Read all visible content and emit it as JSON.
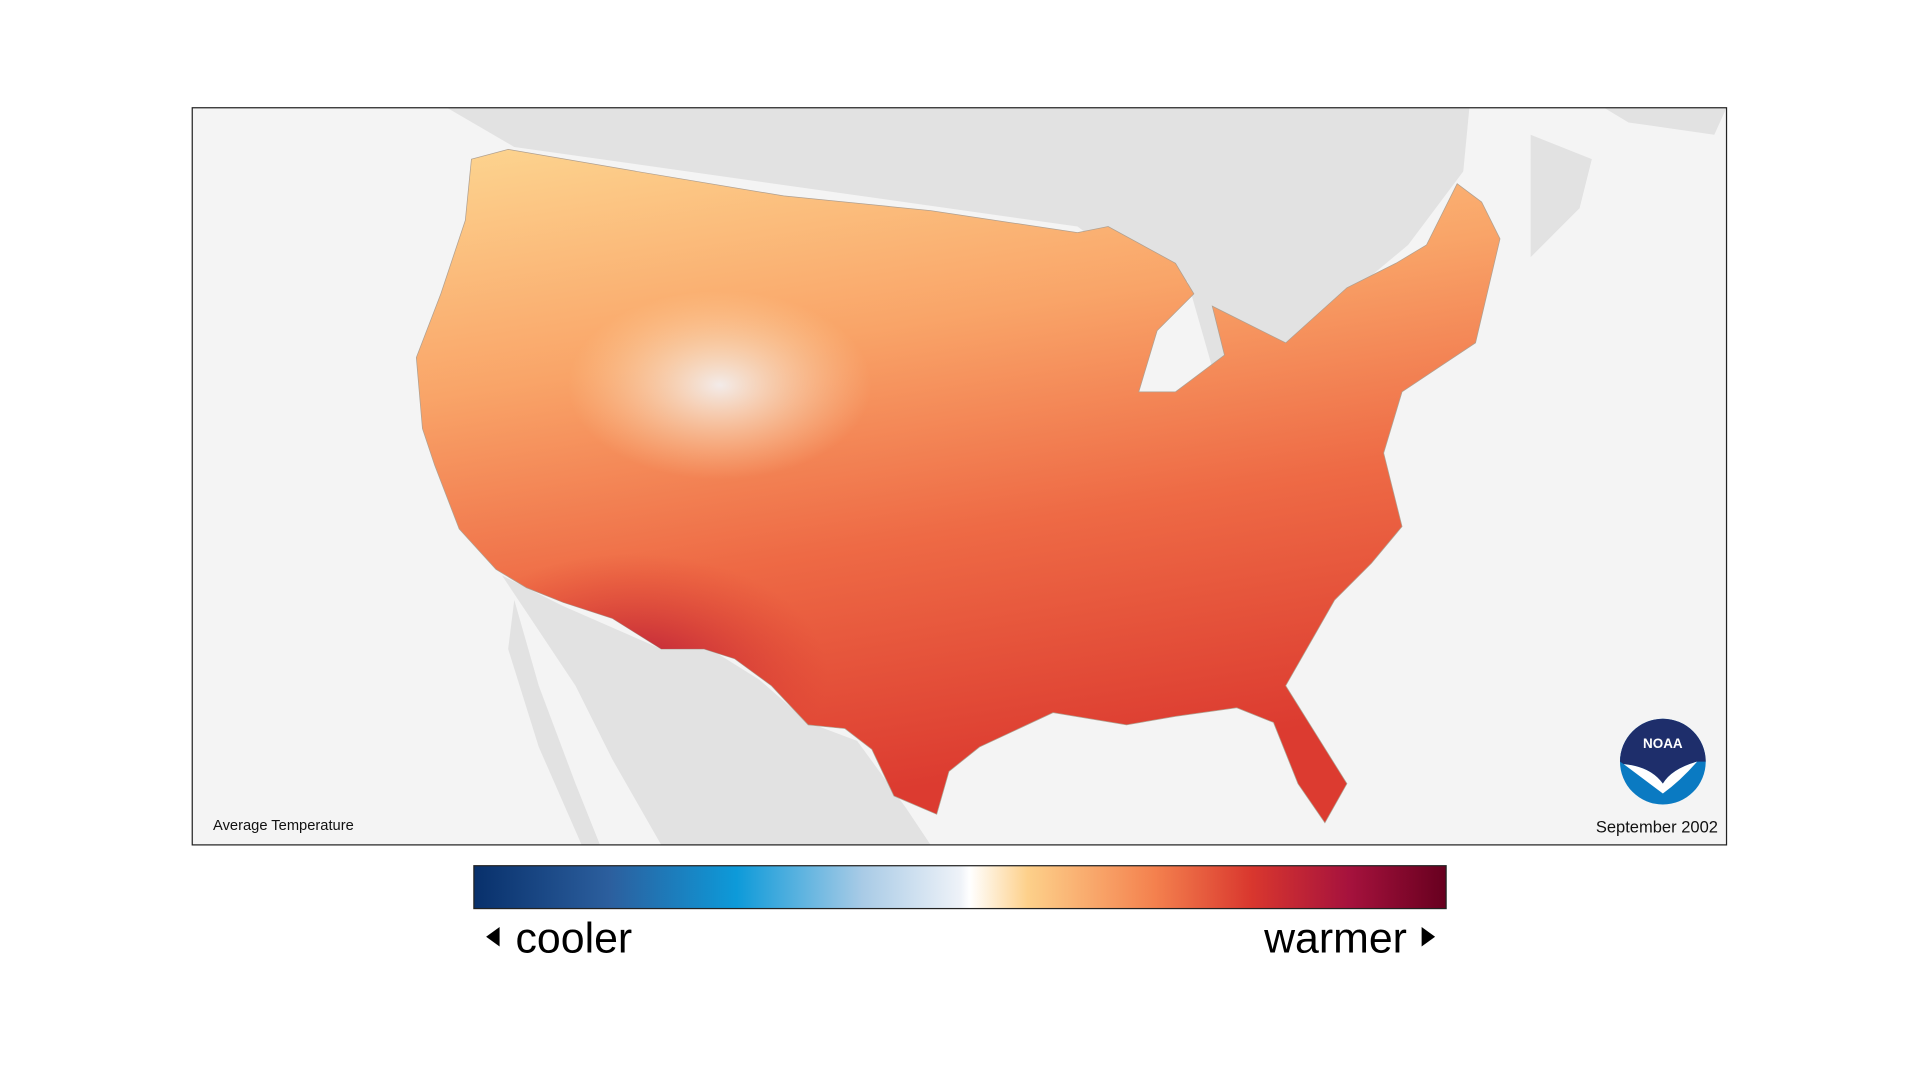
{
  "map": {
    "title": "Average Temperature",
    "date": "September 2002"
  },
  "legend": {
    "low_label": "cooler",
    "high_label": "warmer"
  },
  "logo": {
    "text": "NOAA"
  }
}
